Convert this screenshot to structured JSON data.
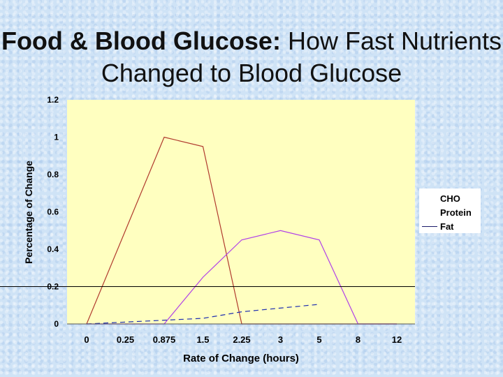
{
  "title": {
    "bold": "Food & Blood Glucose:",
    "rest": "How Fast Nutrients Changed to Blood Glucose"
  },
  "chart_data": {
    "type": "line",
    "categories": [
      "0",
      "0.25",
      "0.875",
      "1.5",
      "2.25",
      "3",
      "5",
      "8",
      "12"
    ],
    "xlabel": "Rate of Change (hours)",
    "ylabel": "Percentage of Change",
    "ylim": [
      0,
      1.2
    ],
    "yticks": [
      "0",
      "0.2",
      "0.4",
      "0.6",
      "0.8",
      "1",
      "1.2"
    ],
    "reference_line": 0.2,
    "legend_position": "right",
    "plot_background": "#ffffc0",
    "series": [
      {
        "name": "CHO",
        "color": "#b03a2e",
        "style": "solid",
        "values": [
          0,
          0.5,
          1.0,
          0.95,
          0,
          0,
          0,
          0,
          0
        ]
      },
      {
        "name": "Protein",
        "color": "#b040e8",
        "style": "solid",
        "values": [
          0,
          0,
          0,
          0.25,
          0.45,
          0.5,
          0.45,
          0,
          0
        ]
      },
      {
        "name": "Fat",
        "color": "#1f2fb0",
        "style": "dashed",
        "values": [
          0,
          0.01,
          0.02,
          0.03,
          0.065,
          0.085,
          0.105,
          null,
          null
        ]
      }
    ]
  }
}
